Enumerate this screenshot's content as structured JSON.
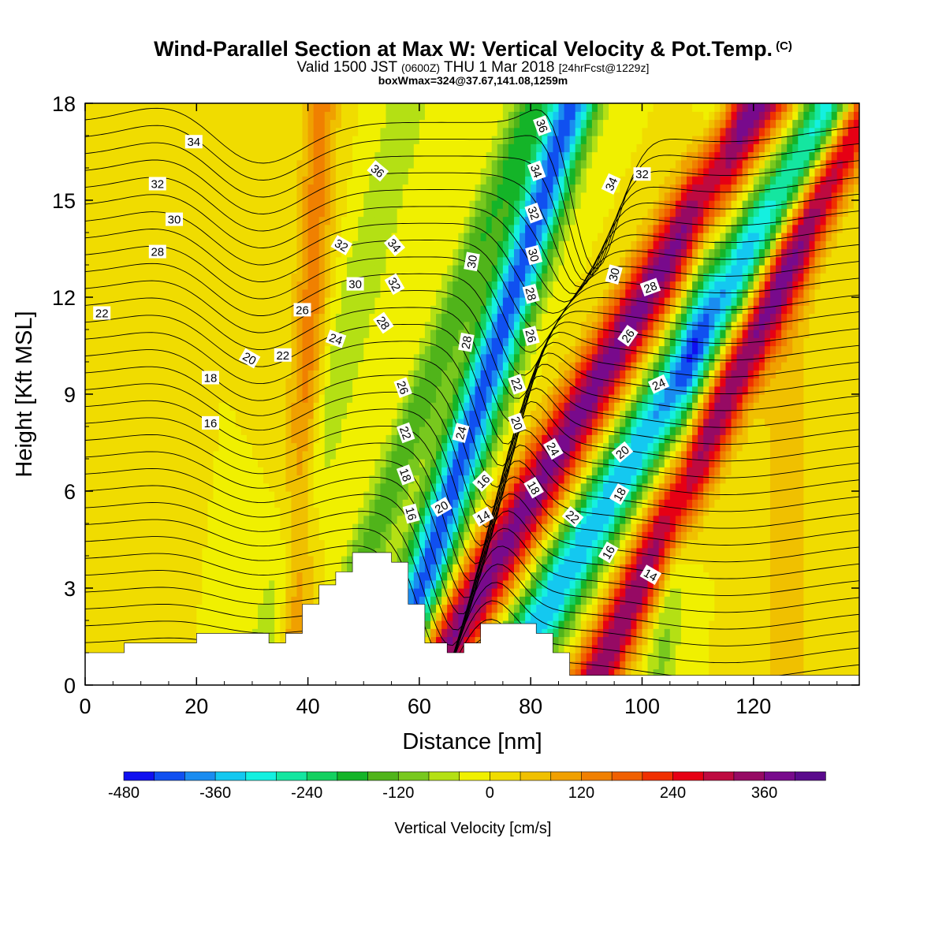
{
  "header": {
    "title": "Wind-Parallel Section at Max W: Vertical Velocity & Pot.Temp.",
    "copyright": "(C)",
    "valid_a": "Valid 1500 JST",
    "valid_b": "(0600Z)",
    "valid_c": "THU 1 Mar 2018",
    "valid_d": "[24hrFcst@1229z]",
    "boxline": "boxWmax=324@37.67,141.08,1259m"
  },
  "chart_data": {
    "type": "contour-section",
    "xlabel": "Distance [nm]",
    "ylabel": "Height [Kft MSL]",
    "xlim": [
      0,
      139
    ],
    "ylim": [
      0,
      18
    ],
    "x_ticks": [
      0,
      20,
      40,
      60,
      80,
      100,
      120
    ],
    "y_ticks": [
      0,
      3,
      6,
      9,
      12,
      15,
      18
    ],
    "colorbar": {
      "label": "Vertical Velocity [cm/s]",
      "min": -480,
      "step": 40,
      "tick_values": [
        -480,
        -360,
        -240,
        -120,
        0,
        120,
        240,
        360
      ],
      "colors": [
        "#1010f0",
        "#1050f0",
        "#1a8cf0",
        "#14c8f0",
        "#14f0e0",
        "#14e6a0",
        "#14d060",
        "#14b428",
        "#50b41a",
        "#78c81e",
        "#b4e014",
        "#f0f000",
        "#f0dc00",
        "#f0c000",
        "#f0a000",
        "#f08000",
        "#f06000",
        "#f03000",
        "#e60014",
        "#be0a40",
        "#960a64",
        "#780a8c",
        "#5a0a8c"
      ]
    },
    "terrain": [
      [
        0,
        1
      ],
      [
        7,
        1
      ],
      [
        7,
        1.3
      ],
      [
        20,
        1.3
      ],
      [
        20,
        1.6
      ],
      [
        33,
        1.6
      ],
      [
        33,
        1.3
      ],
      [
        36,
        1.3
      ],
      [
        36,
        1.6
      ],
      [
        39,
        1.6
      ],
      [
        39,
        2.5
      ],
      [
        42,
        2.5
      ],
      [
        42,
        3.1
      ],
      [
        45,
        3.1
      ],
      [
        45,
        3.5
      ],
      [
        48,
        3.5
      ],
      [
        48,
        4.1
      ],
      [
        55,
        4.1
      ],
      [
        55,
        3.8
      ],
      [
        58,
        3.8
      ],
      [
        58,
        2.5
      ],
      [
        61,
        2.5
      ],
      [
        61,
        1.3
      ],
      [
        65,
        1.3
      ],
      [
        65,
        1
      ],
      [
        68,
        1
      ],
      [
        68,
        1.3
      ],
      [
        71,
        1.3
      ],
      [
        71,
        1.9
      ],
      [
        81,
        1.9
      ],
      [
        81,
        1.6
      ],
      [
        84,
        1.6
      ],
      [
        84,
        1
      ],
      [
        87,
        1
      ],
      [
        87,
        0.3
      ],
      [
        139,
        0.3
      ]
    ],
    "wfield": {
      "bands": [
        {
          "center": [
            55,
            0
          ],
          "slope": 0.3,
          "width": 4.5,
          "amplitude": -420
        },
        {
          "center": [
            61,
            0
          ],
          "slope": 0.55,
          "width": 5.5,
          "amplitude": 380
        },
        {
          "center": [
            75,
            0
          ],
          "slope": 0.55,
          "width": 5.5,
          "amplitude": -360
        },
        {
          "center": [
            91,
            0
          ],
          "slope": 0.45,
          "width": 4.5,
          "amplitude": 360
        },
        {
          "center": [
            42,
            0
          ],
          "slope": 0.35,
          "width": 3.5,
          "amplitude": -150
        },
        {
          "center": [
            31,
            0
          ],
          "slope": 0.25,
          "width": 4,
          "amplitude": -80
        },
        {
          "center": [
            37,
            0
          ],
          "slope": 0.05,
          "width": 3,
          "amplitude": 140
        },
        {
          "center": [
            103,
            0
          ],
          "slope": 0.1,
          "width": 3,
          "amplitude": -90
        },
        {
          "center": [
            126,
            0
          ],
          "slope": 0,
          "width": 5,
          "amplitude": 60
        },
        {
          "center": [
            10,
            0
          ],
          "slope": 0,
          "width": 3,
          "amplitude": 40
        }
      ]
    },
    "contour_labels": [
      {
        "text": "34",
        "x": 19.5,
        "y": 16.8,
        "angle": 0
      },
      {
        "text": "32",
        "x": 13,
        "y": 15.5,
        "angle": 0
      },
      {
        "text": "30",
        "x": 16,
        "y": 14.4,
        "angle": 0
      },
      {
        "text": "28",
        "x": 13,
        "y": 13.4,
        "angle": 0
      },
      {
        "text": "22",
        "x": 3,
        "y": 11.5,
        "angle": 0
      },
      {
        "text": "20",
        "x": 29.5,
        "y": 10.1,
        "angle": 30
      },
      {
        "text": "18",
        "x": 22.5,
        "y": 9.5,
        "angle": 0
      },
      {
        "text": "16",
        "x": 22.5,
        "y": 8.1,
        "angle": 0
      },
      {
        "text": "22",
        "x": 35.5,
        "y": 10.2,
        "angle": 0
      },
      {
        "text": "26",
        "x": 39,
        "y": 11.6,
        "angle": 0
      },
      {
        "text": "24",
        "x": 45,
        "y": 10.7,
        "angle": 20
      },
      {
        "text": "30",
        "x": 48.5,
        "y": 12.4,
        "angle": 0
      },
      {
        "text": "32",
        "x": 46,
        "y": 13.6,
        "angle": 30
      },
      {
        "text": "36",
        "x": 52.5,
        "y": 15.9,
        "angle": 40
      },
      {
        "text": "34",
        "x": 55.5,
        "y": 13.6,
        "angle": 50
      },
      {
        "text": "32",
        "x": 55.5,
        "y": 12.4,
        "angle": 60
      },
      {
        "text": "28",
        "x": 53.5,
        "y": 11.2,
        "angle": 55
      },
      {
        "text": "26",
        "x": 57,
        "y": 9.2,
        "angle": 70
      },
      {
        "text": "22",
        "x": 57.5,
        "y": 7.8,
        "angle": 70
      },
      {
        "text": "18",
        "x": 57.5,
        "y": 6.5,
        "angle": 70
      },
      {
        "text": "16",
        "x": 58.5,
        "y": 5.3,
        "angle": 75
      },
      {
        "text": "20",
        "x": 64,
        "y": 5.5,
        "angle": -30
      },
      {
        "text": "14",
        "x": 71.5,
        "y": 5.2,
        "angle": -30
      },
      {
        "text": "16",
        "x": 71.5,
        "y": 6.3,
        "angle": -45
      },
      {
        "text": "24",
        "x": 67.5,
        "y": 7.8,
        "angle": -75
      },
      {
        "text": "28",
        "x": 68.5,
        "y": 10.6,
        "angle": -80
      },
      {
        "text": "30",
        "x": 69.5,
        "y": 13.1,
        "angle": -80
      },
      {
        "text": "36",
        "x": 82,
        "y": 17.3,
        "angle": 70
      },
      {
        "text": "34",
        "x": 81,
        "y": 15.9,
        "angle": 70
      },
      {
        "text": "32",
        "x": 80.5,
        "y": 14.6,
        "angle": 70
      },
      {
        "text": "30",
        "x": 80.5,
        "y": 13.3,
        "angle": 75
      },
      {
        "text": "28",
        "x": 80,
        "y": 12.1,
        "angle": 75
      },
      {
        "text": "26",
        "x": 80,
        "y": 10.8,
        "angle": 75
      },
      {
        "text": "22",
        "x": 77.5,
        "y": 9.3,
        "angle": 70
      },
      {
        "text": "20",
        "x": 77.5,
        "y": 8.1,
        "angle": 70
      },
      {
        "text": "24",
        "x": 84,
        "y": 7.3,
        "angle": 60
      },
      {
        "text": "18",
        "x": 80.5,
        "y": 6.1,
        "angle": 60
      },
      {
        "text": "22",
        "x": 87.5,
        "y": 5.2,
        "angle": 40
      },
      {
        "text": "34",
        "x": 94.5,
        "y": 15.5,
        "angle": -65
      },
      {
        "text": "32",
        "x": 100,
        "y": 15.8,
        "angle": 0
      },
      {
        "text": "30",
        "x": 95,
        "y": 12.7,
        "angle": -75
      },
      {
        "text": "28",
        "x": 101.5,
        "y": 12.3,
        "angle": -20
      },
      {
        "text": "26",
        "x": 97.5,
        "y": 10.8,
        "angle": -55
      },
      {
        "text": "24",
        "x": 103,
        "y": 9.3,
        "angle": -25
      },
      {
        "text": "20",
        "x": 96.5,
        "y": 7.2,
        "angle": -40
      },
      {
        "text": "18",
        "x": 96,
        "y": 5.9,
        "angle": -60
      },
      {
        "text": "16",
        "x": 94,
        "y": 4.1,
        "angle": -60
      },
      {
        "text": "14",
        "x": 101.5,
        "y": 3.4,
        "angle": 30
      }
    ]
  }
}
